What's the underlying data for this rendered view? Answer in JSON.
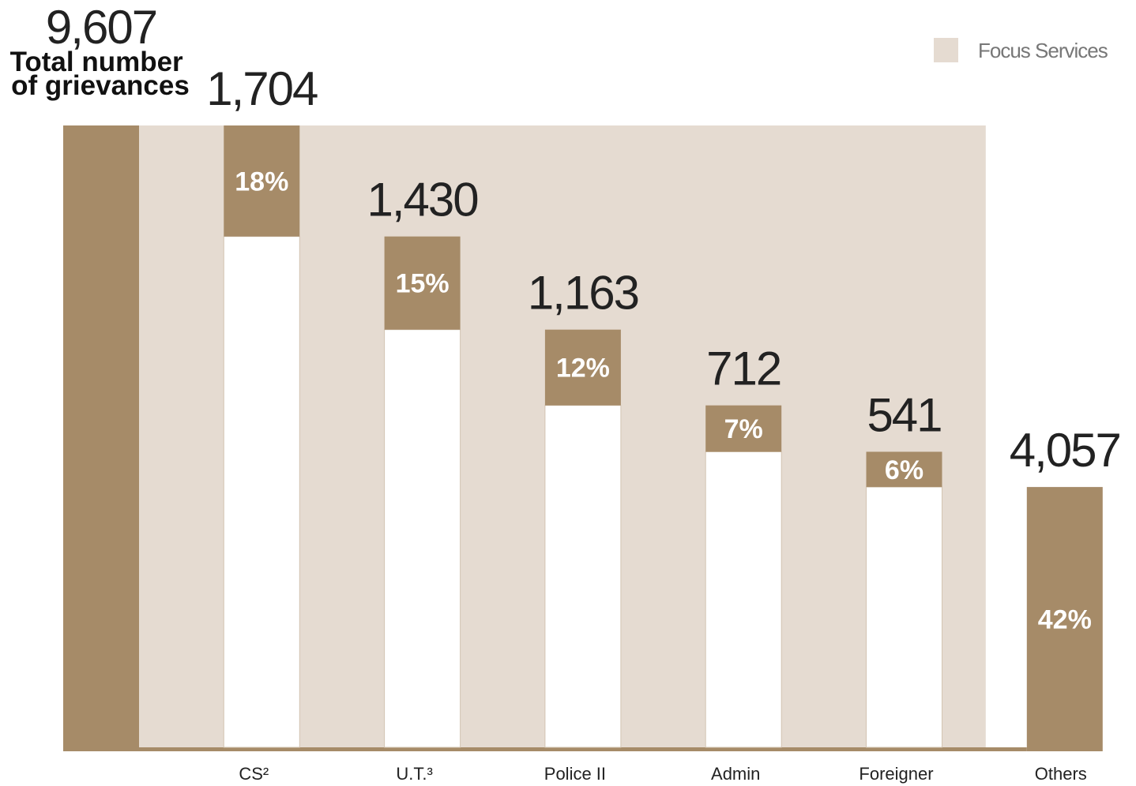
{
  "chart_data": {
    "type": "waterfall",
    "total_label": [
      "Total number",
      "of grievances"
    ],
    "legend": "Focus Services",
    "categories": [
      null,
      "CS²",
      "U.T.³",
      "Police II",
      "Admin",
      "Foreigner",
      "Others"
    ],
    "values": [
      9607,
      1704,
      1430,
      1163,
      712,
      541,
      4057
    ],
    "value_labels": [
      "9,607",
      "1,704",
      "1,430",
      "1,163",
      "712",
      "541",
      "4,057"
    ],
    "shares": [
      18,
      15,
      12,
      7,
      6,
      42
    ],
    "share_labels": [
      "18%",
      "15%",
      "12%",
      "7%",
      "6%",
      "42%"
    ],
    "color": "#a68b68",
    "focus_color": "#e5dbd1"
  }
}
